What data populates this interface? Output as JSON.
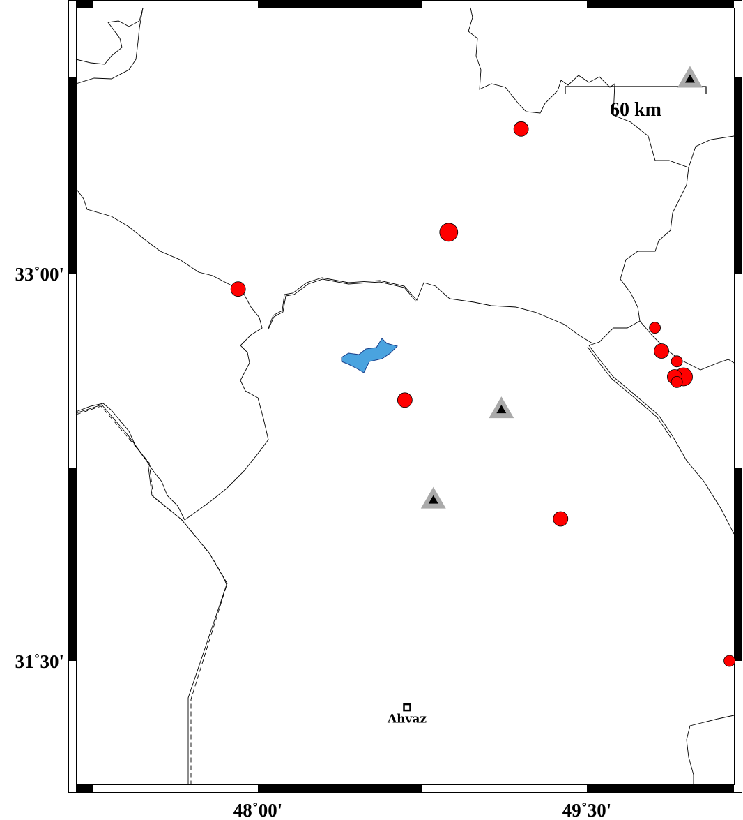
{
  "map": {
    "region": {
      "lon_min": 47.17,
      "lon_max": 50.17,
      "lat_min": 31.02,
      "lat_max": 34.03
    },
    "x_ticks": [
      {
        "lon": 48.0,
        "label": "48˚00'"
      },
      {
        "lon": 49.5,
        "label": "49˚30'"
      }
    ],
    "y_ticks": [
      {
        "lat": 33.0,
        "label": "33˚00'"
      },
      {
        "lat": 31.5,
        "label": "31˚30'"
      }
    ],
    "scale_bar": {
      "label": "60 km"
    },
    "colors": {
      "event": "#ff0000",
      "station_outer": "#aaaaaa",
      "station_inner": "#000000",
      "lake": "#4aa3df",
      "border": "#000000"
    },
    "events": [
      {
        "lon": 49.2,
        "lat": 33.56,
        "size": 2
      },
      {
        "lon": 48.87,
        "lat": 33.16,
        "size": 3
      },
      {
        "lon": 47.91,
        "lat": 32.94,
        "size": 2
      },
      {
        "lon": 49.81,
        "lat": 32.79,
        "size": 1
      },
      {
        "lon": 49.84,
        "lat": 32.7,
        "size": 2
      },
      {
        "lon": 49.91,
        "lat": 32.66,
        "size": 1
      },
      {
        "lon": 49.94,
        "lat": 32.6,
        "size": 3
      },
      {
        "lon": 49.9,
        "lat": 32.6,
        "size": 2
      },
      {
        "lon": 49.91,
        "lat": 32.58,
        "size": 1
      },
      {
        "lon": 48.67,
        "lat": 32.51,
        "size": 2
      },
      {
        "lon": 49.38,
        "lat": 32.05,
        "size": 2
      },
      {
        "lon": 50.15,
        "lat": 31.5,
        "size": 1
      }
    ],
    "stations": [
      {
        "lon": 49.97,
        "lat": 33.75
      },
      {
        "lon": 49.11,
        "lat": 32.47
      },
      {
        "lon": 48.8,
        "lat": 32.12
      }
    ],
    "cities": [
      {
        "name": "Ahvaz",
        "lon": 48.68,
        "lat": 31.32
      }
    ]
  }
}
